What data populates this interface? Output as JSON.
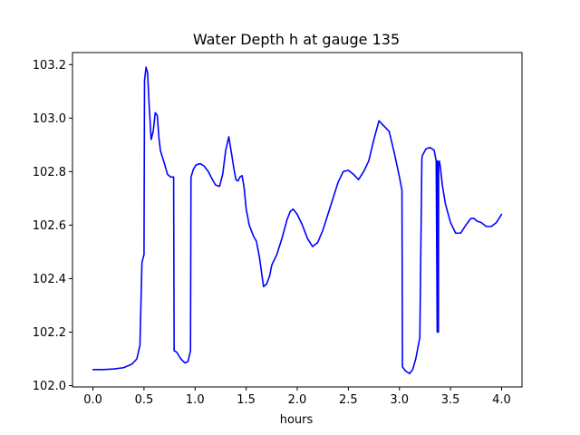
{
  "chart_data": {
    "type": "line",
    "title": "Water Depth h at gauge 135",
    "xlabel": "hours",
    "ylabel": "",
    "xlim": [
      -0.2,
      4.2
    ],
    "ylim": [
      101.995,
      103.245
    ],
    "x_ticks": [
      0.0,
      0.5,
      1.0,
      1.5,
      2.0,
      2.5,
      3.0,
      3.5,
      4.0
    ],
    "x_tick_labels": [
      "0.0",
      "0.5",
      "1.0",
      "1.5",
      "2.0",
      "2.5",
      "3.0",
      "3.5",
      "4.0"
    ],
    "y_ticks": [
      102.0,
      102.2,
      102.4,
      102.6,
      102.8,
      103.0,
      103.2
    ],
    "y_tick_labels": [
      "102.0",
      "102.2",
      "102.4",
      "102.6",
      "102.8",
      "103.0",
      "103.2"
    ],
    "grid": false,
    "legend": "none",
    "line_color": "#0000ff",
    "series": [
      {
        "x": [
          0.0,
          0.1,
          0.2,
          0.3,
          0.38,
          0.43,
          0.46,
          0.48,
          0.5,
          0.505,
          0.52,
          0.535,
          0.55,
          0.57,
          0.59,
          0.61,
          0.63,
          0.645,
          0.66,
          0.675,
          0.7,
          0.73,
          0.76,
          0.79,
          0.795,
          0.8,
          0.82,
          0.86,
          0.9,
          0.93,
          0.955,
          0.96,
          0.985,
          1.01,
          1.05,
          1.09,
          1.13,
          1.17,
          1.2,
          1.24,
          1.27,
          1.3,
          1.33,
          1.36,
          1.38,
          1.4,
          1.42,
          1.44,
          1.46,
          1.48,
          1.5,
          1.53,
          1.57,
          1.6,
          1.63,
          1.67,
          1.7,
          1.73,
          1.75,
          1.8,
          1.85,
          1.9,
          1.93,
          1.96,
          2.0,
          2.05,
          2.1,
          2.15,
          2.2,
          2.25,
          2.3,
          2.35,
          2.4,
          2.45,
          2.5,
          2.55,
          2.6,
          2.65,
          2.7,
          2.75,
          2.8,
          2.85,
          2.9,
          2.95,
          3.0,
          3.025,
          3.03,
          3.06,
          3.1,
          3.13,
          3.16,
          3.2,
          3.22,
          3.225,
          3.26,
          3.3,
          3.34,
          3.36,
          3.37,
          3.372,
          3.382,
          3.384,
          3.39,
          3.4,
          3.42,
          3.45,
          3.5,
          3.55,
          3.6,
          3.65,
          3.7,
          3.73,
          3.76,
          3.8,
          3.85,
          3.9,
          3.95,
          4.0
        ],
        "y": [
          102.06,
          102.06,
          102.062,
          102.067,
          102.08,
          102.1,
          102.15,
          102.46,
          102.49,
          103.14,
          103.19,
          103.17,
          103.05,
          102.92,
          102.95,
          103.02,
          103.01,
          102.93,
          102.88,
          102.86,
          102.83,
          102.79,
          102.78,
          102.78,
          102.13,
          102.13,
          102.125,
          102.1,
          102.085,
          102.09,
          102.13,
          102.78,
          102.81,
          102.825,
          102.83,
          102.82,
          102.8,
          102.77,
          102.75,
          102.745,
          102.79,
          102.88,
          102.93,
          102.86,
          102.81,
          102.77,
          102.765,
          102.78,
          102.785,
          102.74,
          102.66,
          102.6,
          102.56,
          102.54,
          102.48,
          102.37,
          102.38,
          102.41,
          102.45,
          102.49,
          102.55,
          102.62,
          102.65,
          102.66,
          102.64,
          102.6,
          102.55,
          102.52,
          102.535,
          102.58,
          102.64,
          102.7,
          102.76,
          102.8,
          102.805,
          102.79,
          102.77,
          102.8,
          102.84,
          102.92,
          102.99,
          102.97,
          102.95,
          102.87,
          102.78,
          102.73,
          102.07,
          102.055,
          102.045,
          102.06,
          102.1,
          102.18,
          102.85,
          102.86,
          102.885,
          102.89,
          102.88,
          102.84,
          102.2,
          102.84,
          102.2,
          102.83,
          102.84,
          102.82,
          102.75,
          102.68,
          102.61,
          102.57,
          102.57,
          102.6,
          102.625,
          102.625,
          102.615,
          102.61,
          102.595,
          102.595,
          102.61,
          102.64
        ]
      }
    ]
  }
}
